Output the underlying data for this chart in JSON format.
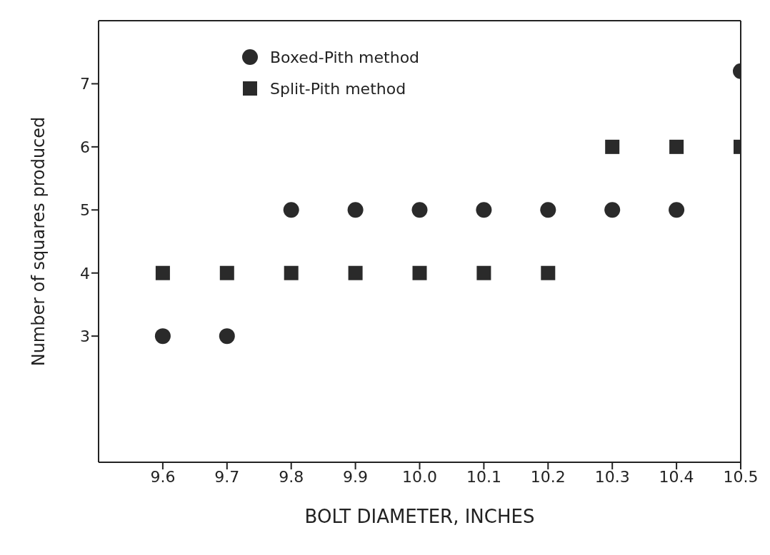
{
  "chart_data": {
    "type": "scatter",
    "xlabel": "BOLT DIAMETER, INCHES",
    "ylabel": "Number of squares produced",
    "xlim": [
      9.5,
      10.5
    ],
    "ylim": [
      1,
      8
    ],
    "xticks": [
      9.6,
      9.7,
      9.8,
      9.9,
      {
        "value": 10.0,
        "label": "10.0"
      },
      10.1,
      10.2,
      10.3,
      10.4,
      10.5
    ],
    "yticks": [
      3,
      4,
      5,
      6,
      7
    ],
    "grid": false,
    "legend": "top left",
    "series": [
      {
        "name": "Boxed-Pith method",
        "color": "#2a2a2a",
        "marker": "circle",
        "x": [
          9.6,
          9.7,
          9.8,
          9.9,
          10.0,
          10.1,
          10.2,
          10.3,
          10.4,
          10.5
        ],
        "values": [
          3,
          3,
          5,
          5,
          5,
          5,
          5,
          5,
          5,
          7.2
        ]
      },
      {
        "name": "Split-Pith method",
        "color": "#2a2a2a",
        "marker": "square",
        "x": [
          9.6,
          9.7,
          9.8,
          9.9,
          10.0,
          10.1,
          10.2,
          10.3,
          10.4,
          10.5
        ],
        "values": [
          4,
          4,
          4,
          4,
          4,
          4,
          4,
          6,
          6,
          6
        ]
      }
    ]
  }
}
